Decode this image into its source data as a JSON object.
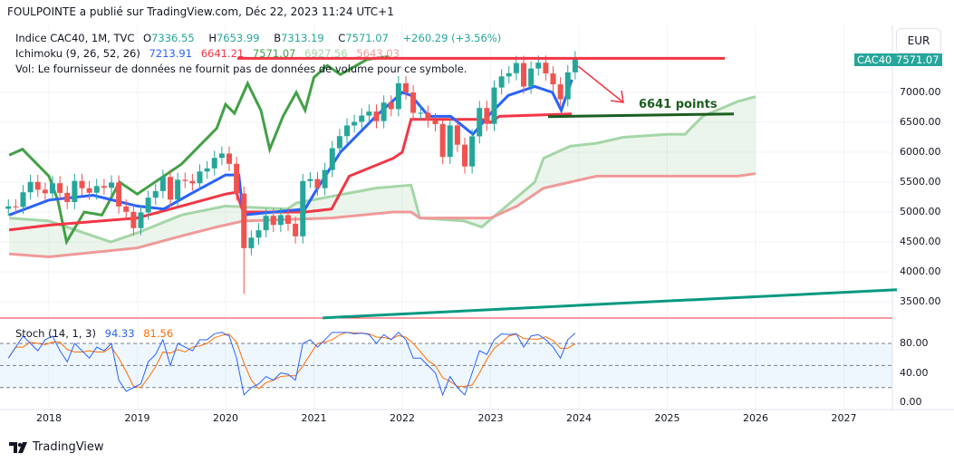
{
  "header": {
    "title": "FOULPOINTE a publié sur TradingView.com, Déc 22, 2023 11:24 UTC+1"
  },
  "legend": {
    "symbol": "Indice CAC40, 1M, TVC",
    "o_label": "O",
    "o": "7336.55",
    "h_label": "H",
    "h": "7653.99",
    "l_label": "B",
    "l": "7313.19",
    "c_label": "C",
    "c": "7571.07",
    "change": "+260.29 (+3.56%)",
    "ichimoku": "Ichimoku (9, 26, 52, 26)",
    "tenkan": "7213.91",
    "kijun": "6641.21",
    "chikou": "7571.07",
    "span_a": "6927.56",
    "span_b": "5643.03",
    "vol": "Vol: Le fournisseur de données ne fournit pas de données de volume pour ce symbole.",
    "stoch": "Stoch (14, 1, 3)",
    "stoch_k": "94.33",
    "stoch_d": "81.56"
  },
  "currency": "EUR",
  "symbol_tag": "CAC40",
  "price_tag": "7571.07",
  "annotation": "6641 points",
  "price_axis": [
    "7000.00",
    "6500.00",
    "6000.00",
    "5500.00",
    "5000.00",
    "4500.00",
    "4000.00",
    "3500.00"
  ],
  "stoch_axis": [
    "80.00",
    "40.00",
    "0.00"
  ],
  "time_axis": [
    "2018",
    "2019",
    "2020",
    "2021",
    "2022",
    "2023",
    "2024",
    "2025",
    "2026",
    "2027"
  ],
  "footer": {
    "brand": "TradingView"
  },
  "colors": {
    "up": "#26a69a",
    "down": "#ef5350",
    "tenkan": "#2962ff",
    "kijun": "#f23645",
    "chikou": "#43a047",
    "spanA": "#a5d6a7",
    "spanB": "#ef9a9a",
    "stochK": "#2962ff",
    "stochD": "#ff6d00"
  },
  "chart_data": {
    "type": "candlestick",
    "start": "2017-07",
    "interval": "1M",
    "closes": [
      5094,
      5086,
      5330,
      5503,
      5373,
      5313,
      5482,
      5320,
      5167,
      5520,
      5398,
      5323,
      5434,
      5406,
      5493,
      5093,
      5003,
      4731,
      4993,
      5240,
      5350,
      5586,
      5208,
      5539,
      5519,
      5480,
      5678,
      5730,
      5905,
      5978,
      5806,
      5309,
      4396,
      4572,
      4695,
      4936,
      4784,
      4947,
      4803,
      4594,
      5518,
      5551,
      5399,
      5703,
      6067,
      6269,
      6447,
      6508,
      6613,
      6680,
      6520,
      6830,
      6721,
      7153,
      7000,
      6659,
      6660,
      6533,
      6469,
      5922,
      6448,
      6125,
      5762,
      6266,
      6739,
      6474,
      7082,
      7268,
      7322,
      7491,
      7098,
      7400,
      7497,
      7317,
      7135,
      6885,
      7336,
      7571
    ],
    "tenkan": [
      [
        2017.55,
        4950
      ],
      [
        2018,
        5200
      ],
      [
        2018.5,
        5280
      ],
      [
        2019,
        5100
      ],
      [
        2019.3,
        5050
      ],
      [
        2019.6,
        5300
      ],
      [
        2020,
        5620
      ],
      [
        2020.15,
        5620
      ],
      [
        2020.2,
        4950
      ],
      [
        2020.9,
        5050
      ],
      [
        2021,
        5300
      ],
      [
        2021.3,
        6000
      ],
      [
        2021.7,
        6600
      ],
      [
        2022,
        7000
      ],
      [
        2022.1,
        6950
      ],
      [
        2022.3,
        6600
      ],
      [
        2022.55,
        6600
      ],
      [
        2022.8,
        6300
      ],
      [
        2023,
        6650
      ],
      [
        2023.2,
        6950
      ],
      [
        2023.5,
        7100
      ],
      [
        2023.7,
        7000
      ],
      [
        2023.8,
        6700
      ],
      [
        2023.92,
        7214
      ]
    ],
    "kijun": [
      [
        2017.55,
        4700
      ],
      [
        2018,
        4780
      ],
      [
        2019,
        4900
      ],
      [
        2019.5,
        5100
      ],
      [
        2020,
        5300
      ],
      [
        2020.12,
        5330
      ],
      [
        2020.2,
        5000
      ],
      [
        2020.9,
        5000
      ],
      [
        2021.2,
        5050
      ],
      [
        2021.4,
        5600
      ],
      [
        2021.9,
        5900
      ],
      [
        2022,
        6000
      ],
      [
        2022.1,
        6550
      ],
      [
        2022.9,
        6550
      ],
      [
        2023,
        6500
      ],
      [
        2023.1,
        6600
      ],
      [
        2023.92,
        6641
      ]
    ],
    "spanA": [
      [
        2017.55,
        4900
      ],
      [
        2018,
        4850
      ],
      [
        2018.7,
        4500
      ],
      [
        2019,
        4650
      ],
      [
        2019.5,
        4950
      ],
      [
        2020,
        5100
      ],
      [
        2020.7,
        5050
      ],
      [
        2020.8,
        5150
      ],
      [
        2021.7,
        5400
      ],
      [
        2022.1,
        5450
      ],
      [
        2022.2,
        4900
      ],
      [
        2022.7,
        4850
      ],
      [
        2022.9,
        4750
      ],
      [
        2023.1,
        5000
      ],
      [
        2023.5,
        5500
      ],
      [
        2023.6,
        5900
      ],
      [
        2023.9,
        6100
      ],
      [
        2024.2,
        6150
      ],
      [
        2024.5,
        6250
      ],
      [
        2025,
        6300
      ],
      [
        2025.2,
        6300
      ],
      [
        2025.4,
        6600
      ],
      [
        2025.8,
        6850
      ],
      [
        2026,
        6928
      ]
    ],
    "spanB": [
      [
        2017.55,
        4300
      ],
      [
        2018,
        4250
      ],
      [
        2019,
        4400
      ],
      [
        2019.5,
        4600
      ],
      [
        2019.9,
        4750
      ],
      [
        2020.2,
        4850
      ],
      [
        2021.2,
        4900
      ],
      [
        2021.9,
        5000
      ],
      [
        2022.1,
        5000
      ],
      [
        2022.2,
        4900
      ],
      [
        2023,
        4900
      ],
      [
        2023.3,
        5100
      ],
      [
        2023.6,
        5400
      ],
      [
        2023.9,
        5500
      ],
      [
        2024.2,
        5600
      ],
      [
        2025.8,
        5600
      ],
      [
        2026,
        5643
      ]
    ],
    "chikou": [
      [
        2017.55,
        5950
      ],
      [
        2017.7,
        6050
      ],
      [
        2018,
        5600
      ],
      [
        2018.1,
        5200
      ],
      [
        2018.2,
        4500
      ],
      [
        2018.4,
        5000
      ],
      [
        2018.6,
        4950
      ],
      [
        2018.8,
        5500
      ],
      [
        2019,
        5300
      ],
      [
        2019.5,
        5800
      ],
      [
        2019.9,
        6400
      ],
      [
        2020,
        6800
      ],
      [
        2020.1,
        6650
      ],
      [
        2020.25,
        7150
      ],
      [
        2020.4,
        6700
      ],
      [
        2020.5,
        6050
      ],
      [
        2020.65,
        6600
      ],
      [
        2020.8,
        7000
      ],
      [
        2020.9,
        6700
      ],
      [
        2021,
        7250
      ],
      [
        2021.15,
        7450
      ],
      [
        2021.3,
        7300
      ],
      [
        2021.6,
        7550
      ],
      [
        2021.85,
        7600
      ]
    ],
    "resistance": 7571,
    "support": 6641,
    "trendline": [
      [
        2021.1,
        3230
      ],
      [
        2027.6,
        3700
      ]
    ],
    "stoch_k": [
      60,
      75,
      90,
      80,
      70,
      85,
      90,
      70,
      55,
      80,
      70,
      60,
      75,
      70,
      80,
      30,
      15,
      20,
      25,
      55,
      65,
      85,
      50,
      80,
      75,
      70,
      85,
      85,
      93,
      95,
      90,
      60,
      10,
      20,
      25,
      35,
      30,
      40,
      38,
      30,
      80,
      85,
      75,
      85,
      95,
      95,
      95,
      93,
      94,
      92,
      80,
      92,
      85,
      95,
      85,
      60,
      60,
      50,
      40,
      10,
      35,
      20,
      10,
      40,
      70,
      65,
      85,
      93,
      92,
      93,
      75,
      90,
      92,
      85,
      75,
      60,
      85,
      94
    ],
    "price_range": [
      3300,
      7700
    ],
    "stoch_range": [
      0,
      100
    ]
  }
}
